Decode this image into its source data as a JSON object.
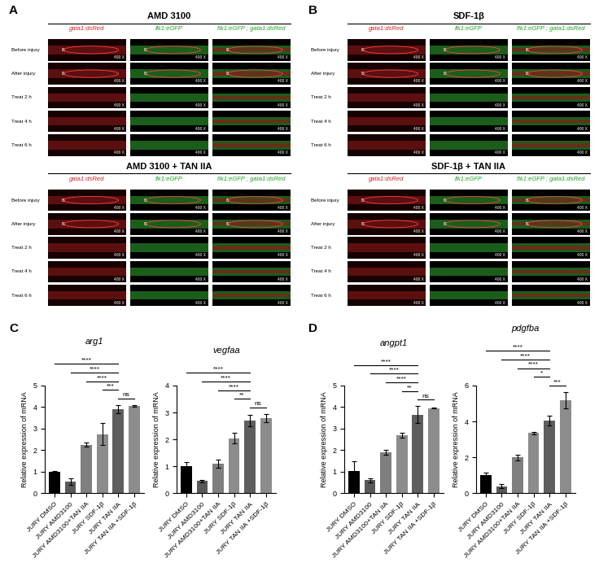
{
  "images": {
    "panels": [
      {
        "letter": "A",
        "blocks": [
          {
            "title": "AMD 3100"
          },
          {
            "title": "AMD 3100 + TAN IIA"
          }
        ]
      },
      {
        "letter": "B",
        "blocks": [
          {
            "title": "SDF-1β"
          },
          {
            "title": "SDF-1β + TAN IIA"
          }
        ]
      }
    ],
    "columns": [
      "gata1:dsRed",
      "flk1:eGFP",
      "flk1:eGFP ; gata1:dsRed"
    ],
    "rows": [
      "Before injury",
      "After injury",
      "Treat 2 h",
      "Treat 4 h",
      "Treat 6 h"
    ],
    "magnification": "400 X",
    "region_label": "IS"
  },
  "chart_data": [
    {
      "type": "bar",
      "panel": "C",
      "title": "arg1",
      "ylabel": "Relative expression of mRNA",
      "categories": [
        "JURY DMSO",
        "JURY AMD3100",
        "JURY AMD3100+TAN IIA",
        "JURY SDF-1β",
        "JURY TAN IIA",
        "JURY TAN IIA +SDF-1β"
      ],
      "values": [
        1.0,
        0.55,
        2.25,
        2.75,
        3.9,
        4.05
      ],
      "errors": [
        0.02,
        0.15,
        0.1,
        0.5,
        0.2,
        0.05
      ],
      "colors": [
        "#000000",
        "#595959",
        "#7f7f7f",
        "#8c8c8c",
        "#5e5e5e",
        "#8c8c8c"
      ],
      "ylim": [
        0,
        5
      ],
      "yticks": [
        0,
        1,
        2,
        3,
        4,
        5
      ],
      "comparisons": [
        {
          "from": 0,
          "to": 4,
          "label": "****"
        },
        {
          "from": 1,
          "to": 4,
          "label": "****"
        },
        {
          "from": 2,
          "to": 4,
          "label": "****"
        },
        {
          "from": 3,
          "to": 4,
          "label": "***"
        },
        {
          "from": 4,
          "to": 5,
          "label": "ns"
        }
      ]
    },
    {
      "type": "bar",
      "title": "vegfaa",
      "ylabel": "Relative expression of mRNA",
      "categories": [
        "JURY DMSO",
        "JURY AMD3100",
        "JURY AMD3100+TAN IIA",
        "JURY SDF-1β",
        "JURY TAN IIA",
        "JURY TAN IIA +SDF-1β"
      ],
      "values": [
        1.0,
        0.45,
        1.1,
        2.05,
        2.7,
        2.8
      ],
      "errors": [
        0.15,
        0.05,
        0.15,
        0.2,
        0.2,
        0.15
      ],
      "colors": [
        "#000000",
        "#595959",
        "#7f7f7f",
        "#8c8c8c",
        "#5e5e5e",
        "#8c8c8c"
      ],
      "ylim": [
        0,
        4
      ],
      "yticks": [
        0,
        1,
        2,
        3,
        4
      ],
      "comparisons": [
        {
          "from": 0,
          "to": 4,
          "label": "****"
        },
        {
          "from": 1,
          "to": 4,
          "label": "****"
        },
        {
          "from": 2,
          "to": 4,
          "label": "****"
        },
        {
          "from": 3,
          "to": 4,
          "label": "**"
        },
        {
          "from": 4,
          "to": 5,
          "label": "ns"
        }
      ]
    },
    {
      "type": "bar",
      "panel": "D",
      "title": "angpt1",
      "ylabel": "Relative expression of mRNA",
      "categories": [
        "JURY DMSO",
        "JURY AMD3100",
        "JURY AMD3100+TAN IIA",
        "JURY SDF-1β",
        "JURY TAN IIA",
        "JURY TAN IIA +SDF-1β"
      ],
      "values": [
        1.05,
        0.6,
        1.9,
        2.7,
        3.65,
        3.95
      ],
      "errors": [
        0.45,
        0.1,
        0.1,
        0.1,
        0.4,
        0.02
      ],
      "colors": [
        "#000000",
        "#595959",
        "#7f7f7f",
        "#8c8c8c",
        "#5e5e5e",
        "#8c8c8c"
      ],
      "ylim": [
        0,
        5
      ],
      "yticks": [
        0,
        1,
        2,
        3,
        4,
        5
      ],
      "comparisons": [
        {
          "from": 0,
          "to": 4,
          "label": "****"
        },
        {
          "from": 1,
          "to": 4,
          "label": "****"
        },
        {
          "from": 2,
          "to": 4,
          "label": "****"
        },
        {
          "from": 3,
          "to": 4,
          "label": "**"
        },
        {
          "from": 4,
          "to": 5,
          "label": "ns"
        }
      ]
    },
    {
      "type": "bar",
      "title": "pdgfba",
      "ylabel": "Relative expression of mRNA",
      "categories": [
        "JURY DMSO",
        "JURY AMD3100",
        "JURY AMD3100+TAN IIA",
        "JURY SDF-1β",
        "JURY TAN IIA",
        "JURY TAN IIA +SDF-1β"
      ],
      "values": [
        1.0,
        0.4,
        2.0,
        3.35,
        4.05,
        5.2
      ],
      "errors": [
        0.15,
        0.1,
        0.15,
        0.05,
        0.25,
        0.45
      ],
      "colors": [
        "#000000",
        "#595959",
        "#7f7f7f",
        "#8c8c8c",
        "#5e5e5e",
        "#8c8c8c"
      ],
      "ylim": [
        0,
        6
      ],
      "yticks": [
        0,
        2,
        4,
        6
      ],
      "comparisons": [
        {
          "from": 0,
          "to": 4,
          "label": "****"
        },
        {
          "from": 1,
          "to": 4,
          "label": "****"
        },
        {
          "from": 2,
          "to": 4,
          "label": "****"
        },
        {
          "from": 3,
          "to": 4,
          "label": "*"
        },
        {
          "from": 4,
          "to": 5,
          "label": "***"
        }
      ]
    }
  ]
}
